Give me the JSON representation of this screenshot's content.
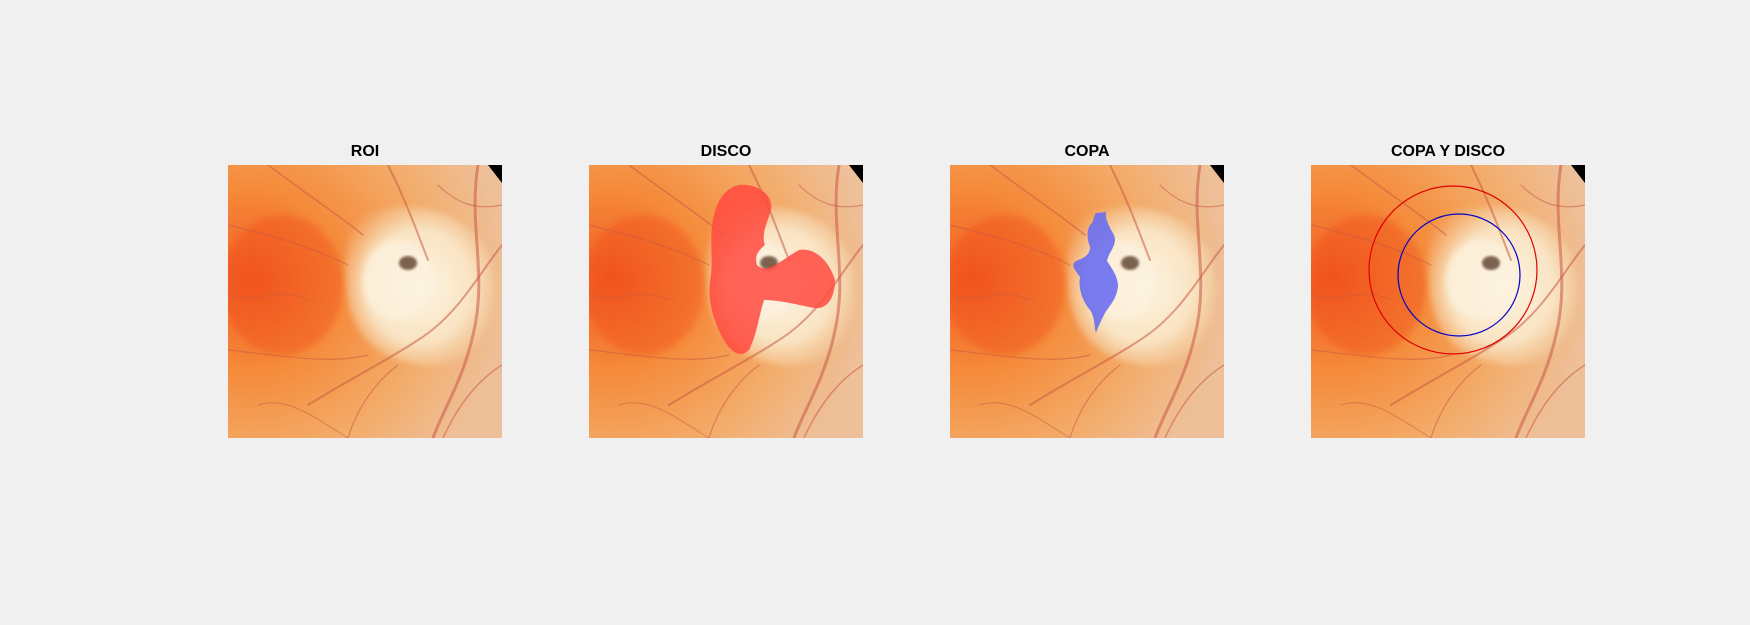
{
  "panels": [
    {
      "id": "roi",
      "title": "ROI",
      "overlay": "none"
    },
    {
      "id": "disco",
      "title": "DISCO",
      "overlay": "disc-mask",
      "overlay_color": "#ff4a40"
    },
    {
      "id": "copa",
      "title": "COPA",
      "overlay": "cup-mask",
      "overlay_color": "#6a6ef0"
    },
    {
      "id": "copa-y-disco",
      "title": "COPA Y DISCO",
      "overlay": "circles",
      "disc_circle_color": "#e00000",
      "cup_circle_color": "#0000cc"
    }
  ],
  "colors": {
    "background": "#f0f0f0",
    "retina": "#f59a45",
    "optic_disc": "#fbe8c8",
    "vessel": "#c8503c"
  }
}
